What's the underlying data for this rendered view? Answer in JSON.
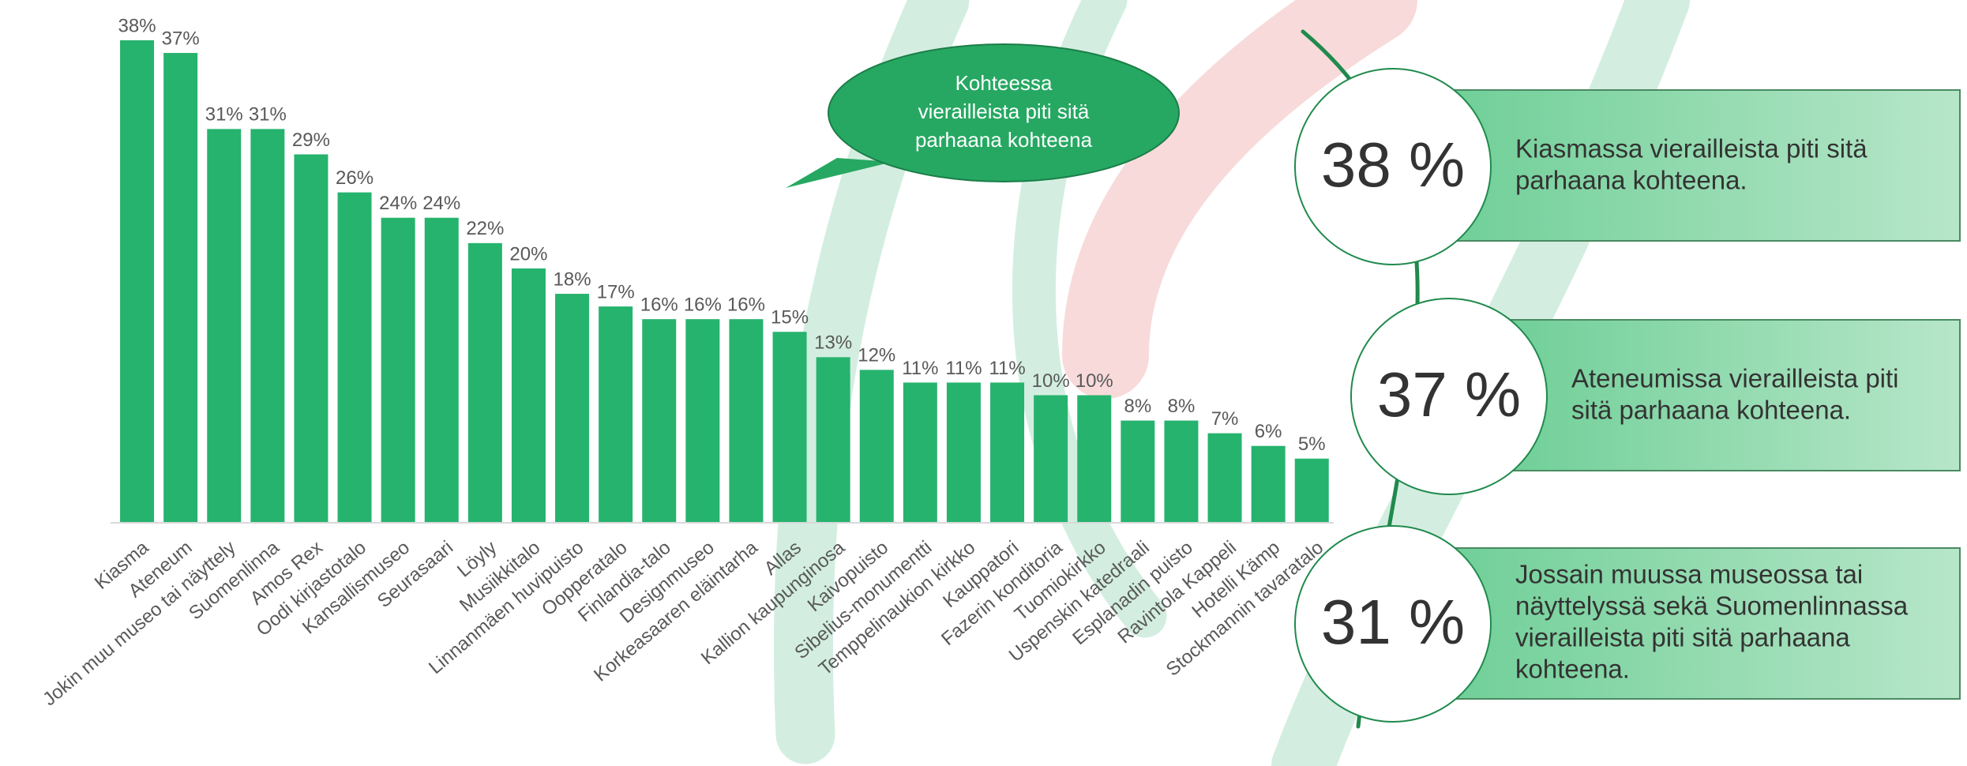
{
  "chart_data": {
    "type": "bar",
    "color": "#26b36e",
    "categories": [
      "Kiasma",
      "Ateneum",
      "Jokin muu museo tai näyttely",
      "Suomenlinna",
      "Amos Rex",
      "Oodi kirjastotalo",
      "Kansallismuseo",
      "Seurasaari",
      "Löyly",
      "Musiikkitalo",
      "Linnanmäen huvipuisto",
      "Oopperatalo",
      "Finlandia-talo",
      "Designmuseo",
      "Korkeasaaren eläintarha",
      "Allas",
      "Kallion kaupunginosa",
      "Kaivopuisto",
      "Sibelius-monumentti",
      "Temppelinaukion kirkko",
      "Kauppatori",
      "Fazerin konditoria",
      "Tuomiokirkko",
      "Uspenskin katedraali",
      "Esplanadin puisto",
      "Ravintola Kappeli",
      "Hotelli Kämp",
      "Stockmannin tavaratalo"
    ],
    "values": [
      38,
      37,
      31,
      31,
      29,
      26,
      24,
      24,
      22,
      20,
      18,
      17,
      16,
      16,
      16,
      15,
      13,
      12,
      11,
      11,
      11,
      10,
      10,
      8,
      8,
      7,
      6,
      5
    ],
    "value_labels": [
      "38%",
      "37%",
      "31%",
      "31%",
      "29%",
      "26%",
      "24%",
      "24%",
      "22%",
      "20%",
      "18%",
      "17%",
      "16%",
      "16%",
      "16%",
      "15%",
      "13%",
      "12%",
      "11%",
      "11%",
      "11%",
      "10%",
      "10%",
      "8%",
      "8%",
      "7%",
      "6%",
      "5%"
    ]
  },
  "bubble": {
    "lines": [
      "Kohteessa",
      "vierailleista piti sitä",
      "parhaana kohteena"
    ]
  },
  "callouts": [
    {
      "value": "38 %",
      "lines": [
        "Kiasmassa vierailleista piti sitä",
        "parhaana kohteena."
      ]
    },
    {
      "value": "37 %",
      "lines": [
        "Ateneumissa vierailleista piti",
        "sitä parhaana kohteena."
      ]
    },
    {
      "value": "31 %",
      "lines": [
        "Jossain muussa museossa tai",
        "näyttelyssä sekä Suomenlinnassa",
        "vierailleista piti sitä parhaana",
        "kohteena."
      ]
    }
  ]
}
